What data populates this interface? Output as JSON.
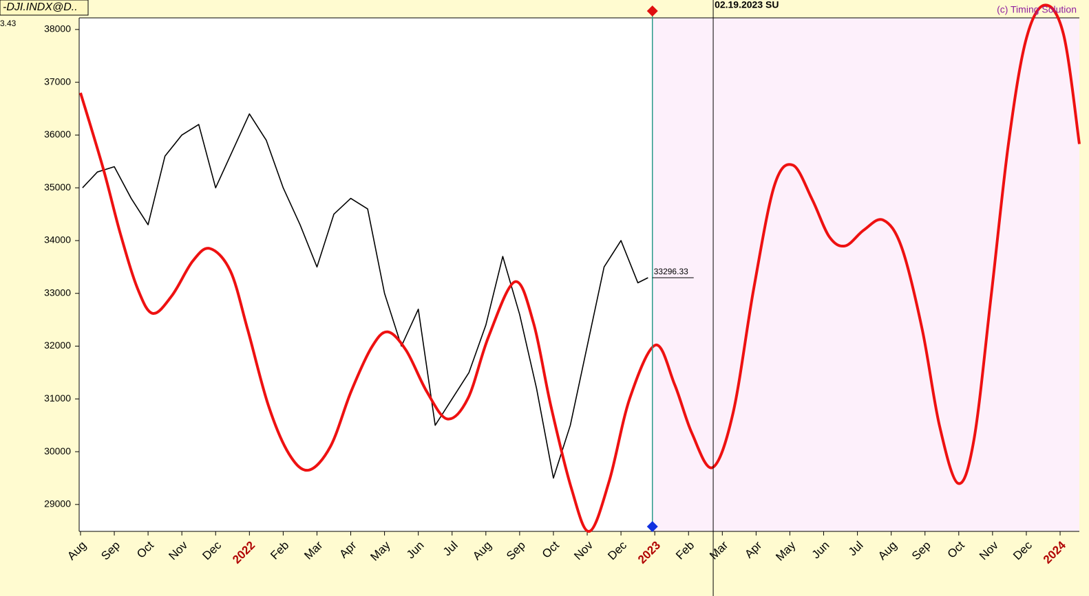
{
  "chart_data": {
    "type": "line",
    "symbol_label": "-DJI.INDX@D..",
    "header_value": "3.43",
    "date_label": "02.19.2023 SU",
    "copyright": "(c) Timing Solution",
    "last_price_label": "33296.33",
    "last_price": 33296.33,
    "cursor_x": 16.93,
    "date_line_x": 18.73,
    "xlim": [
      -0.04,
      29.57
    ],
    "ylim": [
      28490,
      38220
    ],
    "yticks": [
      29000,
      30000,
      31000,
      32000,
      33000,
      34000,
      35000,
      36000,
      37000,
      38000
    ],
    "xticks": [
      {
        "value": 0,
        "label": "Aug"
      },
      {
        "value": 1,
        "label": "Sep"
      },
      {
        "value": 2,
        "label": "Oct"
      },
      {
        "value": 3,
        "label": "Nov"
      },
      {
        "value": 4,
        "label": "Dec"
      },
      {
        "value": 5,
        "label": "2022",
        "color": "#b00000"
      },
      {
        "value": 6,
        "label": "Feb"
      },
      {
        "value": 7,
        "label": "Mar"
      },
      {
        "value": 8,
        "label": "Apr"
      },
      {
        "value": 9,
        "label": "May"
      },
      {
        "value": 10,
        "label": "Jun"
      },
      {
        "value": 11,
        "label": "Jul"
      },
      {
        "value": 12,
        "label": "Aug"
      },
      {
        "value": 13,
        "label": "Sep"
      },
      {
        "value": 14,
        "label": "Oct"
      },
      {
        "value": 15,
        "label": "Nov"
      },
      {
        "value": 16,
        "label": "Dec"
      },
      {
        "value": 17,
        "label": "2023",
        "color": "#b00000"
      },
      {
        "value": 18,
        "label": "Feb"
      },
      {
        "value": 19,
        "label": "Mar"
      },
      {
        "value": 20,
        "label": "Apr"
      },
      {
        "value": 21,
        "label": "May"
      },
      {
        "value": 22,
        "label": "Jun"
      },
      {
        "value": 23,
        "label": "Jul"
      },
      {
        "value": 24,
        "label": "Aug"
      },
      {
        "value": 25,
        "label": "Sep"
      },
      {
        "value": 26,
        "label": "Oct"
      },
      {
        "value": 27,
        "label": "Nov"
      },
      {
        "value": 28,
        "label": "Dec"
      },
      {
        "value": 29,
        "label": "2024",
        "color": "#b00000"
      }
    ],
    "series": [
      {
        "color": "#000000",
        "width": 1.6,
        "x": [
          0.06,
          0.5,
          1,
          1.5,
          2,
          2.5,
          3,
          3.5,
          4,
          4.5,
          5,
          5.5,
          6,
          6.5,
          7,
          7.5,
          8,
          8.5,
          9,
          9.5,
          10,
          10.5,
          11,
          11.5,
          12,
          12.5,
          13,
          13.5,
          14,
          14.5,
          15,
          15.5,
          16,
          16.5,
          16.8
        ],
        "values": [
          35000,
          35300,
          35400,
          34800,
          34300,
          35600,
          36000,
          36200,
          35000,
          35700,
          36400,
          35900,
          35000,
          34300,
          33500,
          34500,
          34800,
          34600,
          33000,
          32000,
          32700,
          30500,
          31000,
          31500,
          32400,
          33700,
          32600,
          31200,
          29500,
          30500,
          32000,
          33500,
          34000,
          33200,
          33296.33
        ]
      },
      {
        "color": "#ee1111",
        "width": 4,
        "x": [
          0,
          0.67,
          1.18,
          1.69,
          2.14,
          2.71,
          3.32,
          3.83,
          4.44,
          4.95,
          5.56,
          6.17,
          6.75,
          7.4,
          8.01,
          8.62,
          9.09,
          9.64,
          10.25,
          10.86,
          11.47,
          12.08,
          12.86,
          13.41,
          13.92,
          14.53,
          15.06,
          15.65,
          16.26,
          17.02,
          17.59,
          18.1,
          18.71,
          19.32,
          19.93,
          20.54,
          21.09,
          21.66,
          22.17,
          22.64,
          23.19,
          23.76,
          24.31,
          24.92,
          25.43,
          25.98,
          26.45,
          26.96,
          27.47,
          27.98,
          28.53,
          29.1,
          29.57
        ],
        "values": [
          36800,
          35370,
          34130,
          33090,
          32620,
          32960,
          33610,
          33850,
          33420,
          32310,
          30880,
          29960,
          29650,
          30100,
          31140,
          31980,
          32270,
          31920,
          31140,
          30620,
          31010,
          32180,
          33220,
          32440,
          30880,
          29310,
          28490,
          29440,
          31010,
          32020,
          31270,
          30350,
          29700,
          30740,
          33090,
          35040,
          35430,
          34780,
          34070,
          33900,
          34200,
          34390,
          33870,
          32310,
          30490,
          29400,
          30230,
          32960,
          35830,
          37780,
          38460,
          37910,
          35830
        ]
      }
    ]
  }
}
